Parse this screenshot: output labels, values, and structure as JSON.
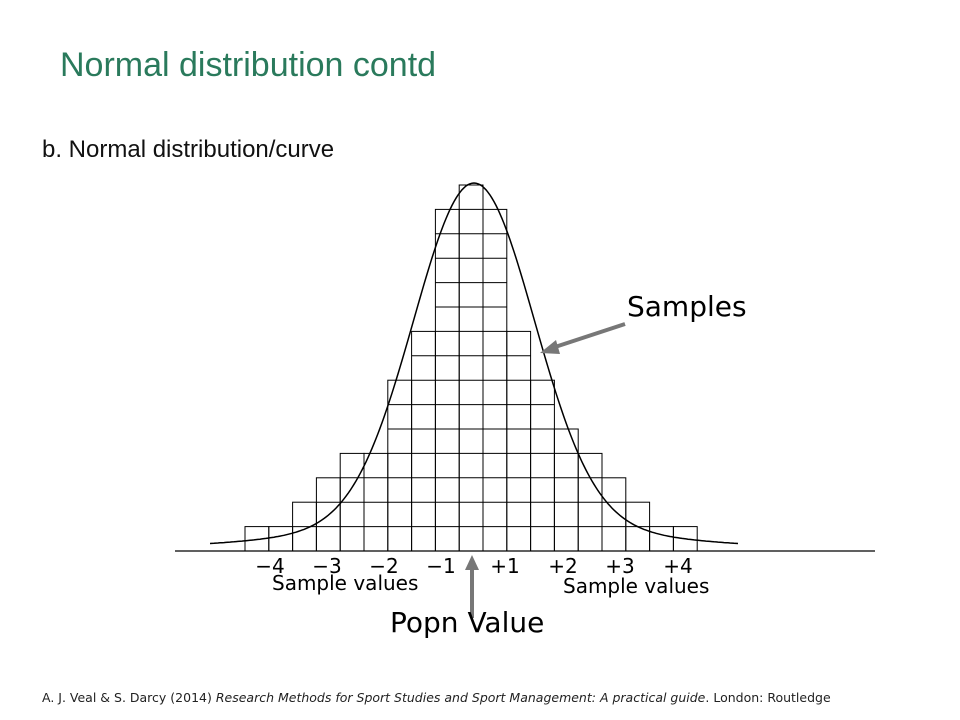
{
  "title": "Normal distribution contd",
  "subtitle": "b. Normal distribution/curve",
  "figure": {
    "counts": [
      1,
      1,
      2,
      3,
      4,
      4,
      7,
      9,
      14,
      15,
      14,
      9,
      7,
      5,
      4,
      3,
      2,
      1,
      1
    ],
    "tick_labels": [
      "−4",
      "−3",
      "−2",
      "−1",
      "+1",
      "+2",
      "+3",
      "+4"
    ],
    "left_axis_label": "Sample values",
    "right_axis_label": "Sample values",
    "samples_label": "Samples",
    "popn_label": "Popn Value"
  },
  "citation": {
    "authors": "A. J. Veal & S. Darcy (2014)",
    "book": "Research Methods for Sport Studies and Sport Management: A practical guide",
    "publisher": ". London: Routledge"
  }
}
